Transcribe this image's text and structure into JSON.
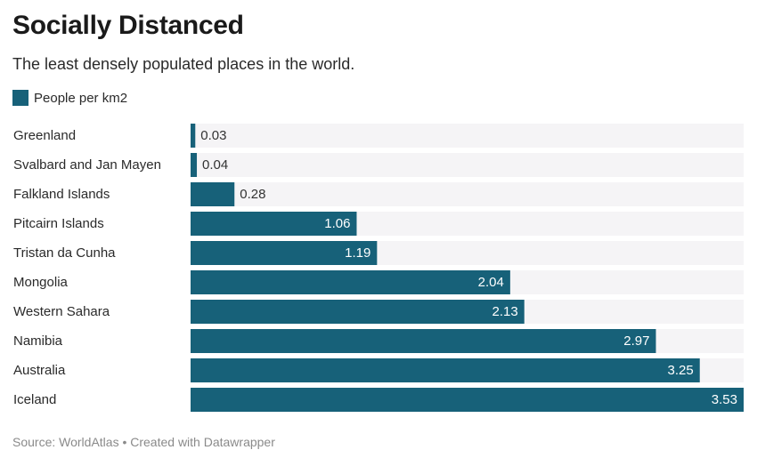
{
  "header": {
    "title": "Socially Distanced",
    "subtitle": "The least densely populated places in the world."
  },
  "footer": {
    "source": "Source: WorldAtlas • Created with Datawrapper"
  },
  "colors": {
    "bar": "#176179",
    "track": "#f5f4f6",
    "label_inside": "#ffffff",
    "label_outside": "#333333"
  },
  "chart_data": {
    "type": "bar",
    "orientation": "horizontal",
    "title": "Socially Distanced",
    "subtitle": "The least densely populated places in the world.",
    "xlim": [
      0,
      3.53
    ],
    "grid": false,
    "legend": "top-left",
    "series": [
      {
        "name": "People per km2",
        "categories": [
          "Greenland",
          "Svalbard and Jan Mayen",
          "Falkland Islands",
          "Pitcairn Islands",
          "Tristan da Cunha",
          "Mongolia",
          "Western Sahara",
          "Namibia",
          "Australia",
          "Iceland"
        ],
        "values": [
          0.03,
          0.04,
          0.28,
          1.06,
          1.19,
          2.04,
          2.13,
          2.97,
          3.25,
          3.53
        ],
        "value_labels": [
          "0.03",
          "0.04",
          "0.28",
          "1.06",
          "1.19",
          "2.04",
          "2.13",
          "2.97",
          "3.25",
          "3.53"
        ]
      }
    ]
  }
}
